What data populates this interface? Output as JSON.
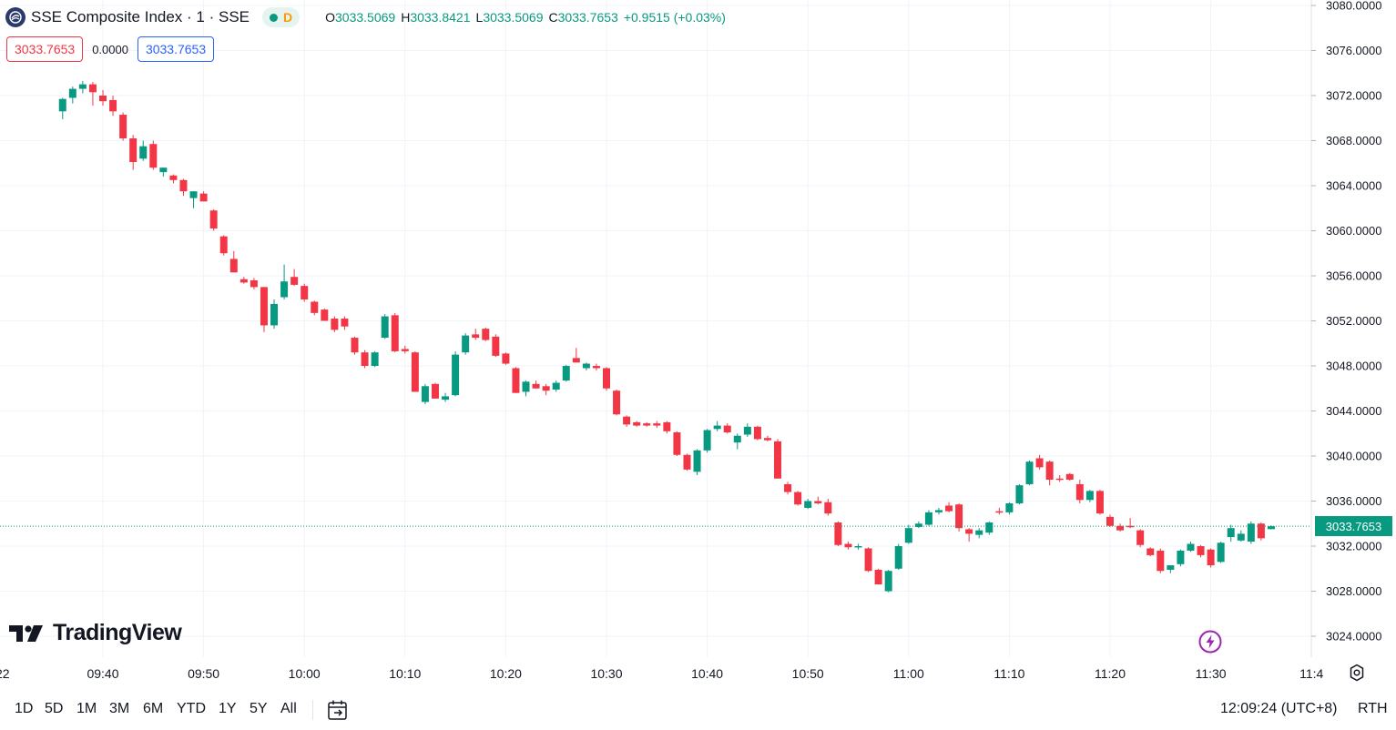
{
  "header": {
    "symbol_title": "SSE Composite Index · 1 · SSE",
    "logo_icon": "sse-logo-icon",
    "status_badge": "D",
    "ohlc": {
      "o_label": "O",
      "o_value": "3033.5069",
      "h_label": "H",
      "h_value": "3033.8421",
      "l_label": "L",
      "l_value": "3033.5069",
      "c_label": "C",
      "c_value": "3033.7653",
      "change": "+0.9515 (+0.03%)"
    },
    "price_boxes": {
      "sell": "3033.7653",
      "spread": "0.0000",
      "buy": "3033.7653"
    }
  },
  "branding": {
    "logo_text": "TradingView"
  },
  "timeframes": [
    "1D",
    "5D",
    "1M",
    "3M",
    "6M",
    "YTD",
    "1Y",
    "5Y",
    "All"
  ],
  "footer": {
    "clock": "12:09:24 (UTC+8)",
    "session": "RTH"
  },
  "colors": {
    "up": "#089981",
    "down": "#f23645",
    "grid": "#f0f3fa",
    "text": "#131722"
  },
  "chart_data": {
    "type": "candlestick",
    "title": "SSE Composite Index · 1 · SSE",
    "y_axis": {
      "ticks": [
        3024,
        3028,
        3032,
        3036,
        3040,
        3044,
        3048,
        3052,
        3056,
        3060,
        3064,
        3068,
        3072,
        3076,
        3080
      ],
      "tick_labels": [
        "3024.0000",
        "3028.0000",
        "3032.0000",
        "3036.0000",
        "3040.0000",
        "3044.0000",
        "3048.0000",
        "3052.0000",
        "3056.0000",
        "3060.0000",
        "3064.0000",
        "3068.0000",
        "3072.0000",
        "3076.0000",
        "3080.0000"
      ],
      "range": [
        3022,
        3081
      ]
    },
    "x_axis": {
      "first_label": "22",
      "first_minute_of_day": 576,
      "last_minute_of_day": 700,
      "ticks": [
        {
          "minute_of_day": 580,
          "label": "09:40"
        },
        {
          "minute_of_day": 590,
          "label": "09:50"
        },
        {
          "minute_of_day": 600,
          "label": "10:00"
        },
        {
          "minute_of_day": 610,
          "label": "10:10"
        },
        {
          "minute_of_day": 620,
          "label": "10:20"
        },
        {
          "minute_of_day": 630,
          "label": "10:30"
        },
        {
          "minute_of_day": 640,
          "label": "10:40"
        },
        {
          "minute_of_day": 650,
          "label": "10:50"
        },
        {
          "minute_of_day": 660,
          "label": "11:00"
        },
        {
          "minute_of_day": 670,
          "label": "11:10"
        },
        {
          "minute_of_day": 680,
          "label": "11:20"
        },
        {
          "minute_of_day": 690,
          "label": "11:30"
        },
        {
          "minute_of_day": 700,
          "label": "11:4"
        }
      ]
    },
    "last_price": 3033.7653,
    "last_price_label": "3033.7653",
    "candles": [
      {
        "o": 3070.6,
        "h": 3071.8,
        "l": 3069.9,
        "c": 3071.7
      },
      {
        "o": 3071.8,
        "h": 3072.8,
        "l": 3071.3,
        "c": 3072.6
      },
      {
        "o": 3072.6,
        "h": 3073.3,
        "l": 3072.2,
        "c": 3073.0
      },
      {
        "o": 3073.0,
        "h": 3073.2,
        "l": 3071.1,
        "c": 3072.3
      },
      {
        "o": 3072.0,
        "h": 3072.5,
        "l": 3071.1,
        "c": 3071.5
      },
      {
        "o": 3071.6,
        "h": 3072.0,
        "l": 3070.2,
        "c": 3070.6
      },
      {
        "o": 3070.3,
        "h": 3070.5,
        "l": 3068.0,
        "c": 3068.2
      },
      {
        "o": 3068.2,
        "h": 3068.5,
        "l": 3065.4,
        "c": 3066.1
      },
      {
        "o": 3066.4,
        "h": 3068.0,
        "l": 3066.2,
        "c": 3067.5
      },
      {
        "o": 3067.7,
        "h": 3068.0,
        "l": 3065.4,
        "c": 3065.6
      },
      {
        "o": 3065.2,
        "h": 3065.6,
        "l": 3064.8,
        "c": 3065.6
      },
      {
        "o": 3064.9,
        "h": 3065.0,
        "l": 3064.2,
        "c": 3064.5
      },
      {
        "o": 3064.5,
        "h": 3064.6,
        "l": 3063.1,
        "c": 3063.5
      },
      {
        "o": 3062.9,
        "h": 3063.5,
        "l": 3062.0,
        "c": 3063.5
      },
      {
        "o": 3063.3,
        "h": 3063.5,
        "l": 3062.6,
        "c": 3062.6
      },
      {
        "o": 3061.8,
        "h": 3061.9,
        "l": 3060.0,
        "c": 3060.2
      },
      {
        "o": 3059.5,
        "h": 3059.6,
        "l": 3057.8,
        "c": 3058.0
      },
      {
        "o": 3057.5,
        "h": 3058.2,
        "l": 3056.3,
        "c": 3056.3
      },
      {
        "o": 3055.7,
        "h": 3055.9,
        "l": 3055.3,
        "c": 3055.4
      },
      {
        "o": 3055.6,
        "h": 3055.8,
        "l": 3054.8,
        "c": 3055.0
      },
      {
        "o": 3055.0,
        "h": 3055.0,
        "l": 3051.0,
        "c": 3051.6
      },
      {
        "o": 3051.6,
        "h": 3053.9,
        "l": 3051.3,
        "c": 3053.5
      },
      {
        "o": 3054.1,
        "h": 3057.0,
        "l": 3053.9,
        "c": 3055.5
      },
      {
        "o": 3055.9,
        "h": 3056.6,
        "l": 3055.1,
        "c": 3055.2
      },
      {
        "o": 3055.1,
        "h": 3055.3,
        "l": 3053.7,
        "c": 3053.9
      },
      {
        "o": 3053.7,
        "h": 3053.8,
        "l": 3052.5,
        "c": 3052.7
      },
      {
        "o": 3053.0,
        "h": 3053.1,
        "l": 3052.0,
        "c": 3052.0
      },
      {
        "o": 3052.2,
        "h": 3052.4,
        "l": 3051.0,
        "c": 3051.2
      },
      {
        "o": 3052.2,
        "h": 3052.4,
        "l": 3051.2,
        "c": 3051.5
      },
      {
        "o": 3050.5,
        "h": 3050.6,
        "l": 3049.0,
        "c": 3049.2
      },
      {
        "o": 3049.2,
        "h": 3049.4,
        "l": 3047.8,
        "c": 3048.0
      },
      {
        "o": 3048.0,
        "h": 3049.3,
        "l": 3047.9,
        "c": 3049.2
      },
      {
        "o": 3050.5,
        "h": 3052.6,
        "l": 3050.4,
        "c": 3052.4
      },
      {
        "o": 3052.5,
        "h": 3052.7,
        "l": 3049.2,
        "c": 3049.3
      },
      {
        "o": 3049.5,
        "h": 3049.8,
        "l": 3049.1,
        "c": 3049.3
      },
      {
        "o": 3049.2,
        "h": 3049.3,
        "l": 3045.7,
        "c": 3045.7
      },
      {
        "o": 3044.8,
        "h": 3046.4,
        "l": 3044.6,
        "c": 3046.2
      },
      {
        "o": 3046.4,
        "h": 3046.5,
        "l": 3045.1,
        "c": 3045.1
      },
      {
        "o": 3045.0,
        "h": 3045.6,
        "l": 3044.8,
        "c": 3045.3
      },
      {
        "o": 3045.4,
        "h": 3049.3,
        "l": 3045.3,
        "c": 3049.0
      },
      {
        "o": 3049.2,
        "h": 3050.9,
        "l": 3049.0,
        "c": 3050.7
      },
      {
        "o": 3050.8,
        "h": 3051.3,
        "l": 3050.3,
        "c": 3050.5
      },
      {
        "o": 3051.3,
        "h": 3051.4,
        "l": 3050.2,
        "c": 3050.3
      },
      {
        "o": 3050.6,
        "h": 3050.8,
        "l": 3048.8,
        "c": 3048.9
      },
      {
        "o": 3049.1,
        "h": 3049.2,
        "l": 3048.1,
        "c": 3048.2
      },
      {
        "o": 3047.8,
        "h": 3047.9,
        "l": 3045.6,
        "c": 3045.6
      },
      {
        "o": 3045.7,
        "h": 3046.7,
        "l": 3045.3,
        "c": 3046.6
      },
      {
        "o": 3046.4,
        "h": 3046.7,
        "l": 3046.0,
        "c": 3046.0
      },
      {
        "o": 3046.2,
        "h": 3046.4,
        "l": 3045.4,
        "c": 3045.8
      },
      {
        "o": 3045.9,
        "h": 3046.7,
        "l": 3045.7,
        "c": 3046.5
      },
      {
        "o": 3046.7,
        "h": 3048.1,
        "l": 3046.6,
        "c": 3048.0
      },
      {
        "o": 3048.7,
        "h": 3049.6,
        "l": 3048.4,
        "c": 3048.3
      },
      {
        "o": 3047.8,
        "h": 3048.3,
        "l": 3047.6,
        "c": 3048.2
      },
      {
        "o": 3048.0,
        "h": 3048.2,
        "l": 3047.6,
        "c": 3047.8
      },
      {
        "o": 3047.8,
        "h": 3047.9,
        "l": 3045.8,
        "c": 3046.0
      },
      {
        "o": 3045.8,
        "h": 3045.9,
        "l": 3043.6,
        "c": 3043.7
      },
      {
        "o": 3043.5,
        "h": 3043.6,
        "l": 3042.6,
        "c": 3042.8
      },
      {
        "o": 3043.0,
        "h": 3043.1,
        "l": 3042.6,
        "c": 3042.7
      },
      {
        "o": 3042.9,
        "h": 3043.0,
        "l": 3042.6,
        "c": 3042.7
      },
      {
        "o": 3042.9,
        "h": 3043.1,
        "l": 3042.5,
        "c": 3042.7
      },
      {
        "o": 3043.0,
        "h": 3043.1,
        "l": 3042.0,
        "c": 3042.2
      },
      {
        "o": 3042.1,
        "h": 3042.2,
        "l": 3040.0,
        "c": 3040.1
      },
      {
        "o": 3040.1,
        "h": 3040.2,
        "l": 3038.7,
        "c": 3038.8
      },
      {
        "o": 3038.6,
        "h": 3040.6,
        "l": 3038.3,
        "c": 3040.5
      },
      {
        "o": 3040.5,
        "h": 3042.4,
        "l": 3040.3,
        "c": 3042.3
      },
      {
        "o": 3042.4,
        "h": 3043.1,
        "l": 3042.2,
        "c": 3042.7
      },
      {
        "o": 3042.7,
        "h": 3042.9,
        "l": 3042.0,
        "c": 3042.1
      },
      {
        "o": 3041.2,
        "h": 3042.0,
        "l": 3040.6,
        "c": 3041.8
      },
      {
        "o": 3041.9,
        "h": 3042.9,
        "l": 3041.7,
        "c": 3042.6
      },
      {
        "o": 3042.6,
        "h": 3042.7,
        "l": 3041.4,
        "c": 3041.5
      },
      {
        "o": 3041.6,
        "h": 3041.8,
        "l": 3041.3,
        "c": 3041.4
      },
      {
        "o": 3041.3,
        "h": 3041.5,
        "l": 3038.0,
        "c": 3038.0
      },
      {
        "o": 3037.5,
        "h": 3037.7,
        "l": 3036.6,
        "c": 3036.8
      },
      {
        "o": 3036.8,
        "h": 3036.9,
        "l": 3035.6,
        "c": 3035.7
      },
      {
        "o": 3035.4,
        "h": 3036.2,
        "l": 3035.3,
        "c": 3036.0
      },
      {
        "o": 3036.0,
        "h": 3036.4,
        "l": 3035.7,
        "c": 3035.8
      },
      {
        "o": 3035.9,
        "h": 3036.2,
        "l": 3034.7,
        "c": 3034.9
      },
      {
        "o": 3034.1,
        "h": 3034.2,
        "l": 3032.0,
        "c": 3032.1
      },
      {
        "o": 3032.2,
        "h": 3032.4,
        "l": 3031.7,
        "c": 3031.9
      },
      {
        "o": 3031.9,
        "h": 3032.2,
        "l": 3031.7,
        "c": 3032.0
      },
      {
        "o": 3031.8,
        "h": 3031.9,
        "l": 3029.7,
        "c": 3029.8
      },
      {
        "o": 3029.9,
        "h": 3030.0,
        "l": 3028.6,
        "c": 3028.6
      },
      {
        "o": 3028.0,
        "h": 3029.9,
        "l": 3027.9,
        "c": 3029.8
      },
      {
        "o": 3030.0,
        "h": 3032.2,
        "l": 3029.9,
        "c": 3032.0
      },
      {
        "o": 3032.3,
        "h": 3033.9,
        "l": 3032.2,
        "c": 3033.6
      },
      {
        "o": 3033.7,
        "h": 3034.2,
        "l": 3033.6,
        "c": 3034.0
      },
      {
        "o": 3033.9,
        "h": 3035.2,
        "l": 3033.8,
        "c": 3035.0
      },
      {
        "o": 3035.0,
        "h": 3035.4,
        "l": 3034.8,
        "c": 3035.2
      },
      {
        "o": 3035.6,
        "h": 3035.9,
        "l": 3035.0,
        "c": 3035.1
      },
      {
        "o": 3035.7,
        "h": 3035.8,
        "l": 3033.3,
        "c": 3033.6
      },
      {
        "o": 3033.5,
        "h": 3033.6,
        "l": 3032.4,
        "c": 3033.1
      },
      {
        "o": 3033.0,
        "h": 3033.6,
        "l": 3032.7,
        "c": 3033.4
      },
      {
        "o": 3033.2,
        "h": 3034.2,
        "l": 3033.0,
        "c": 3034.1
      },
      {
        "o": 3035.1,
        "h": 3035.4,
        "l": 3034.8,
        "c": 3035.0
      },
      {
        "o": 3035.0,
        "h": 3035.9,
        "l": 3034.8,
        "c": 3035.8
      },
      {
        "o": 3035.8,
        "h": 3037.5,
        "l": 3035.7,
        "c": 3037.4
      },
      {
        "o": 3037.5,
        "h": 3039.6,
        "l": 3037.4,
        "c": 3039.5
      },
      {
        "o": 3039.8,
        "h": 3040.1,
        "l": 3038.8,
        "c": 3039.0
      },
      {
        "o": 3039.5,
        "h": 3039.6,
        "l": 3037.4,
        "c": 3037.9
      },
      {
        "o": 3038.0,
        "h": 3038.3,
        "l": 3037.7,
        "c": 3037.9
      },
      {
        "o": 3038.4,
        "h": 3038.5,
        "l": 3037.8,
        "c": 3037.9
      },
      {
        "o": 3037.5,
        "h": 3037.9,
        "l": 3035.8,
        "c": 3036.1
      },
      {
        "o": 3036.1,
        "h": 3037.0,
        "l": 3035.9,
        "c": 3036.9
      },
      {
        "o": 3036.9,
        "h": 3037.0,
        "l": 3034.8,
        "c": 3034.9
      },
      {
        "o": 3034.6,
        "h": 3034.8,
        "l": 3033.7,
        "c": 3033.8
      },
      {
        "o": 3033.8,
        "h": 3034.0,
        "l": 3033.3,
        "c": 3033.4
      },
      {
        "o": 3033.8,
        "h": 3034.5,
        "l": 3033.6,
        "c": 3033.7
      },
      {
        "o": 3033.4,
        "h": 3033.5,
        "l": 3031.9,
        "c": 3032.1
      },
      {
        "o": 3031.8,
        "h": 3031.9,
        "l": 3031.1,
        "c": 3031.2
      },
      {
        "o": 3031.6,
        "h": 3031.8,
        "l": 3029.6,
        "c": 3029.8
      },
      {
        "o": 3029.9,
        "h": 3030.3,
        "l": 3029.6,
        "c": 3030.3
      },
      {
        "o": 3030.4,
        "h": 3031.7,
        "l": 3030.2,
        "c": 3031.6
      },
      {
        "o": 3031.6,
        "h": 3032.4,
        "l": 3031.5,
        "c": 3032.2
      },
      {
        "o": 3032.0,
        "h": 3032.1,
        "l": 3031.0,
        "c": 3031.2
      },
      {
        "o": 3031.7,
        "h": 3031.8,
        "l": 3030.1,
        "c": 3030.3
      },
      {
        "o": 3030.6,
        "h": 3032.4,
        "l": 3030.5,
        "c": 3032.3
      },
      {
        "o": 3032.8,
        "h": 3033.9,
        "l": 3032.4,
        "c": 3033.6
      },
      {
        "o": 3032.5,
        "h": 3033.4,
        "l": 3032.4,
        "c": 3033.1
      },
      {
        "o": 3032.4,
        "h": 3034.2,
        "l": 3032.2,
        "c": 3034.0
      },
      {
        "o": 3034.0,
        "h": 3034.1,
        "l": 3032.5,
        "c": 3032.7
      },
      {
        "o": 3033.5069,
        "h": 3033.8421,
        "l": 3033.5069,
        "c": 3033.7653
      }
    ]
  }
}
